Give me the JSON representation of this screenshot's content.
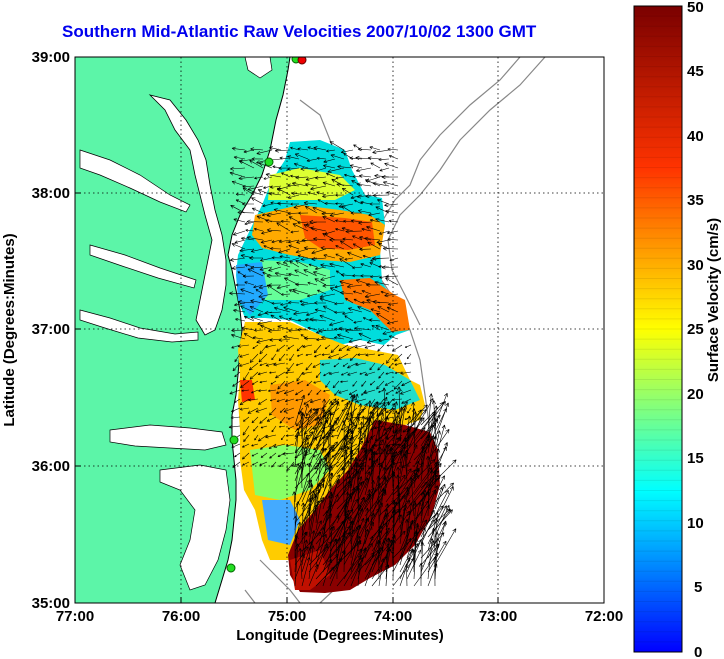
{
  "title": "Southern Mid-Atlantic Raw Velocities 2007/10/02 1300 GMT",
  "x_axis": {
    "label": "Longitude (Degrees:Minutes)",
    "ticks": [
      "77:00",
      "76:00",
      "75:00",
      "74:00",
      "73:00",
      "72:00"
    ]
  },
  "y_axis": {
    "label": "Latitude (Degrees:Minutes)",
    "ticks": [
      "39:00",
      "38:00",
      "37:00",
      "36:00",
      "35:00"
    ]
  },
  "colorbar": {
    "label": "Surface Velocity (cm/s)",
    "ticks": [
      "50",
      "45",
      "40",
      "35",
      "30",
      "25",
      "20",
      "15",
      "10",
      "5",
      "0"
    ],
    "min": 0,
    "max": 50,
    "colormap": [
      "#0000ff",
      "#00ffff",
      "#ffff00",
      "#ff0000",
      "#800000"
    ]
  },
  "colors": {
    "land": "#5cf5a8",
    "water": "#ffffff",
    "coastline": "#000000",
    "bathymetry": "#888888",
    "title": "#0000ee",
    "station_markers": "#22dd22"
  },
  "chart_data": {
    "type": "vector-field",
    "xlim": [
      -77,
      -72
    ],
    "ylim": [
      35,
      39
    ],
    "grid": true
  }
}
